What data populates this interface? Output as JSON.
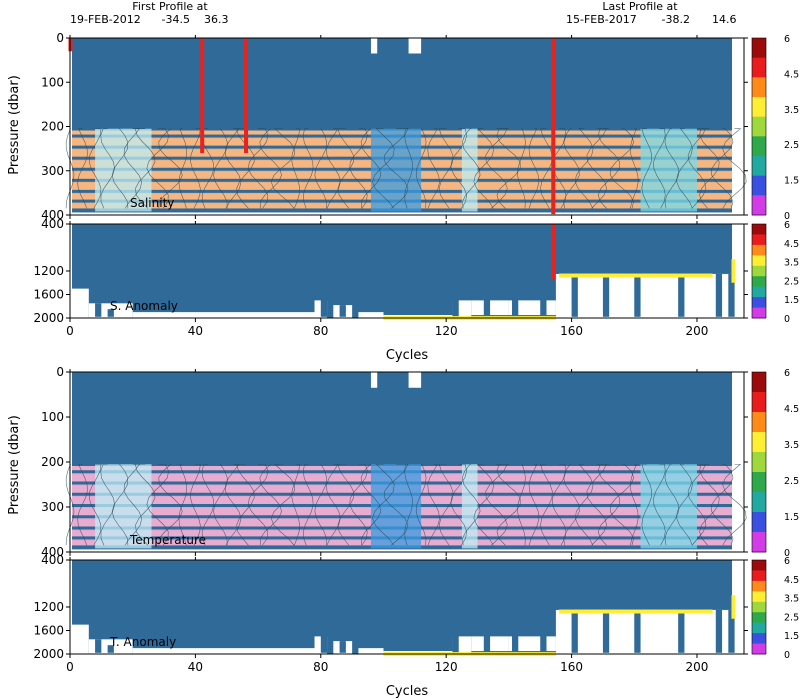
{
  "header": {
    "first_label": "First Profile at",
    "first_date": "19-FEB-2012",
    "first_lat": "-34.5",
    "first_lon": "36.3",
    "last_label": "Last Profile at",
    "last_date": "15-FEB-2017",
    "last_lat": "-38.2",
    "last_lon": "14.6"
  },
  "colors": {
    "profile_fill": "#2f6a99",
    "band_salinity": "#f6b27a",
    "band_temperature": "#e8a8cf",
    "cyan_light": "#bfeef5",
    "cyan_mid": "#7ad9ea",
    "blue_mid": "#3b9be0",
    "flag_red": "#e8231e",
    "anom_yellow": "#ffee33"
  },
  "chart_data": [
    {
      "type": "heatmap",
      "name": "Salinity",
      "label": "Salinity",
      "ylabel": "Pressure (dbar)",
      "xlabel": "",
      "xlim": [
        0,
        215
      ],
      "ylim": [
        400,
        0
      ],
      "xticks": [
        0,
        40,
        80,
        120,
        160,
        200
      ],
      "yticks": [
        0,
        100,
        200,
        300,
        400
      ],
      "band_pressures": [
        205,
        225,
        250,
        275,
        300,
        325,
        350,
        372,
        392
      ],
      "flag_cycles": [
        0,
        42,
        56,
        154
      ],
      "colorbar": {
        "ticks": [
          "6",
          "4.5",
          "3.5",
          "2.5",
          "1.5",
          "0"
        ]
      }
    },
    {
      "type": "heatmap",
      "name": "S. Anomaly",
      "label": "S. Anomaly",
      "ylabel": "",
      "xlabel": "Cycles",
      "xlim": [
        0,
        215
      ],
      "ylim": [
        2000,
        400
      ],
      "xticks": [
        0,
        40,
        80,
        120,
        160,
        200
      ],
      "yticks": [
        400,
        1200,
        1600,
        2000
      ],
      "yticklabels": [
        "400",
        "1200",
        "1600",
        "2000"
      ],
      "colorbar": {
        "ticks": [
          "6",
          "4.5",
          "3.5",
          "2.5",
          "1.5",
          "0"
        ]
      }
    },
    {
      "type": "heatmap",
      "name": "Temperature",
      "label": "Temperature",
      "ylabel": "Pressure (dbar)",
      "xlabel": "",
      "xlim": [
        0,
        215
      ],
      "ylim": [
        400,
        0
      ],
      "xticks": [
        0,
        40,
        80,
        120,
        160,
        200
      ],
      "yticks": [
        0,
        100,
        200,
        300,
        400
      ],
      "band_pressures": [
        205,
        225,
        250,
        275,
        300,
        325,
        350,
        372,
        392
      ],
      "flag_cycles": [],
      "colorbar": {
        "ticks": [
          "6",
          "4.5",
          "3.5",
          "2.5",
          "1.5",
          "0"
        ]
      }
    },
    {
      "type": "heatmap",
      "name": "T. Anomaly",
      "label": "T. Anomaly",
      "ylabel": "",
      "xlabel": "Cycles",
      "xlim": [
        0,
        215
      ],
      "ylim": [
        2000,
        400
      ],
      "xticks": [
        0,
        40,
        80,
        120,
        160,
        200
      ],
      "yticks": [
        400,
        1200,
        1600,
        2000
      ],
      "yticklabels": [
        "400",
        "1200",
        "1600",
        "2000"
      ],
      "colorbar": {
        "ticks": [
          "6",
          "4.5",
          "3.5",
          "2.5",
          "1.5",
          "0"
        ]
      }
    }
  ]
}
